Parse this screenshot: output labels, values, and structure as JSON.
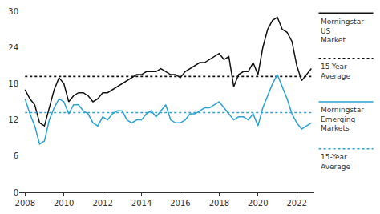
{
  "chart_data": {
    "type": "line",
    "x": [
      2008,
      2008.25,
      2008.5,
      2008.75,
      2009,
      2009.25,
      2009.5,
      2009.75,
      2010,
      2010.25,
      2010.5,
      2010.75,
      2011,
      2011.25,
      2011.5,
      2011.75,
      2012,
      2012.25,
      2012.5,
      2012.75,
      2013,
      2013.25,
      2013.5,
      2013.75,
      2014,
      2014.25,
      2014.5,
      2014.75,
      2015,
      2015.25,
      2015.5,
      2015.75,
      2016,
      2016.25,
      2016.5,
      2016.75,
      2017,
      2017.25,
      2017.5,
      2017.75,
      2018,
      2018.25,
      2018.5,
      2018.75,
      2019,
      2019.25,
      2019.5,
      2019.75,
      2020,
      2020.25,
      2020.5,
      2020.75,
      2021,
      2021.25,
      2021.5,
      2021.75,
      2022,
      2022.25,
      2022.5,
      2022.75
    ],
    "series": [
      {
        "name": "Morningstar US Market",
        "color": "#111111",
        "line_style": "solid",
        "values": [
          17,
          15.5,
          14.5,
          11.5,
          11,
          14,
          17,
          19,
          18,
          15,
          16,
          16.5,
          16.5,
          16,
          15,
          15.5,
          16.5,
          16.5,
          17,
          17.5,
          18,
          18.5,
          19,
          19.5,
          19.5,
          20,
          20,
          20,
          20.5,
          20,
          19.5,
          19.5,
          19,
          20,
          20.5,
          21,
          21.5,
          21.5,
          22,
          22.5,
          23,
          22,
          22.5,
          17.5,
          19.5,
          20,
          20,
          21.5,
          19.5,
          24,
          27,
          28.5,
          29,
          27,
          26.5,
          25,
          21,
          18.5,
          19.5,
          20.5
        ]
      },
      {
        "name": "15-Year Average",
        "color": "#111111",
        "line_style": "dotted",
        "values": [
          19.2,
          19.2,
          19.2,
          19.2,
          19.2,
          19.2,
          19.2,
          19.2,
          19.2,
          19.2,
          19.2,
          19.2,
          19.2,
          19.2,
          19.2,
          19.2,
          19.2,
          19.2,
          19.2,
          19.2,
          19.2,
          19.2,
          19.2,
          19.2,
          19.2,
          19.2,
          19.2,
          19.2,
          19.2,
          19.2,
          19.2,
          19.2,
          19.2,
          19.2,
          19.2,
          19.2,
          19.2,
          19.2,
          19.2,
          19.2,
          19.2,
          19.2,
          19.2,
          19.2,
          19.2,
          19.2,
          19.2,
          19.2,
          19.2,
          19.2,
          19.2,
          19.2,
          19.2,
          19.2,
          19.2,
          19.2,
          19.2,
          19.2,
          19.2,
          19.2
        ]
      },
      {
        "name": "Morningstar Emerging Markets",
        "color": "#29a3d3",
        "line_style": "solid",
        "values": [
          15.5,
          13,
          11,
          8,
          8.5,
          12,
          14,
          15.5,
          15,
          13,
          14.5,
          14.5,
          13.5,
          13,
          11.5,
          11,
          12.5,
          12,
          13,
          13.5,
          13.5,
          12,
          11.5,
          12,
          12,
          13,
          13.5,
          12.5,
          13.5,
          14.5,
          12,
          11.5,
          11.5,
          12,
          13,
          13,
          13.5,
          14,
          14,
          14.5,
          15,
          14,
          13,
          12,
          12.5,
          12.5,
          12,
          13,
          11,
          14,
          16,
          18,
          19.5,
          17.5,
          15.5,
          13,
          11.5,
          10.5,
          11,
          11.5
        ]
      },
      {
        "name": "15-Year Average",
        "color": "#29a3d3",
        "line_style": "dotted",
        "values": [
          13.2,
          13.2,
          13.2,
          13.2,
          13.2,
          13.2,
          13.2,
          13.2,
          13.2,
          13.2,
          13.2,
          13.2,
          13.2,
          13.2,
          13.2,
          13.2,
          13.2,
          13.2,
          13.2,
          13.2,
          13.2,
          13.2,
          13.2,
          13.2,
          13.2,
          13.2,
          13.2,
          13.2,
          13.2,
          13.2,
          13.2,
          13.2,
          13.2,
          13.2,
          13.2,
          13.2,
          13.2,
          13.2,
          13.2,
          13.2,
          13.2,
          13.2,
          13.2,
          13.2,
          13.2,
          13.2,
          13.2,
          13.2,
          13.2,
          13.2,
          13.2,
          13.2,
          13.2,
          13.2,
          13.2,
          13.2,
          13.2,
          13.2,
          13.2,
          13.2
        ]
      }
    ],
    "xlim": [
      2007.7,
      2022.9
    ],
    "xticks": [
      2008,
      2010,
      2012,
      2014,
      2016,
      2018,
      2020,
      2022
    ],
    "ylim": [
      0,
      30
    ],
    "yticks": [
      0,
      6,
      12,
      18,
      24,
      30
    ],
    "grid": false
  }
}
